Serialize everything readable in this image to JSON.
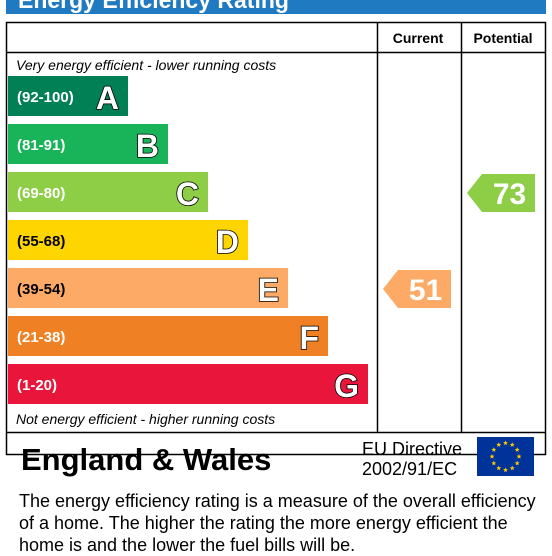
{
  "header": {
    "title": "Energy Efficiency Rating"
  },
  "columns": {
    "current": "Current",
    "potential": "Potential"
  },
  "notes": {
    "top": "Very energy efficient - lower running costs",
    "bottom": "Not energy efficient - higher running costs"
  },
  "chart_data": {
    "type": "bar",
    "title": "Energy Efficiency Rating",
    "categories": [
      "A",
      "B",
      "C",
      "D",
      "E",
      "F",
      "G"
    ],
    "bands": [
      {
        "letter": "A",
        "range": "(92-100)",
        "min": 92,
        "max": 100,
        "color": "#008054"
      },
      {
        "letter": "B",
        "range": "(81-91)",
        "min": 81,
        "max": 91,
        "color": "#19b459"
      },
      {
        "letter": "C",
        "range": "(69-80)",
        "min": 69,
        "max": 80,
        "color": "#8dce46"
      },
      {
        "letter": "D",
        "range": "(55-68)",
        "min": 55,
        "max": 68,
        "color": "#ffd500"
      },
      {
        "letter": "E",
        "range": "(39-54)",
        "min": 39,
        "max": 54,
        "color": "#fcaa65"
      },
      {
        "letter": "F",
        "range": "(21-38)",
        "min": 21,
        "max": 38,
        "color": "#ef8023"
      },
      {
        "letter": "G",
        "range": "(1-20)",
        "min": 1,
        "max": 20,
        "color": "#e9153b"
      }
    ],
    "current": {
      "value": 51,
      "band": "E",
      "color": "#fcaa65"
    },
    "potential": {
      "value": 73,
      "band": "C",
      "color": "#8dce46"
    }
  },
  "footer": {
    "region": "England & Wales",
    "directive_line1": "EU Directive",
    "directive_line2": "2002/91/EC",
    "flag_icon": "eu-flag-icon",
    "flag_color": "#003399",
    "star_color": "#ffcc00"
  },
  "description": "The energy efficiency rating is a measure of the overall efficiency of a home.  The higher the rating the more energy efficient the home is and the lower the fuel bills will be."
}
